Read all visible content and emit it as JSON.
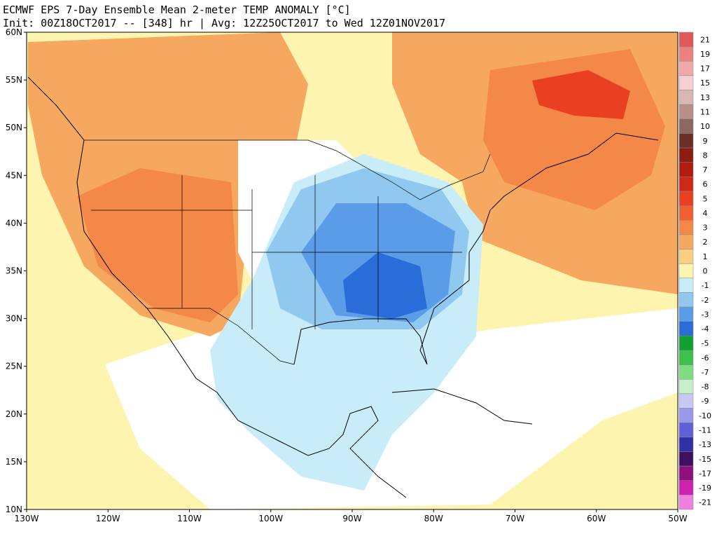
{
  "header": {
    "line1": "ECMWF EPS 7-Day Ensemble Mean 2-meter TEMP ANOMALY [°C]",
    "line2": "Init: 00Z18OCT2017 -- [348] hr | Avg: 12Z25OCT2017 to Wed 12Z01NOV2017"
  },
  "map": {
    "lat_labels": [
      "60N",
      "55N",
      "50N",
      "45N",
      "40N",
      "35N",
      "30N",
      "25N",
      "20N",
      "15N",
      "10N"
    ],
    "lon_labels": [
      "130W",
      "120W",
      "110W",
      "100W",
      "90W",
      "80W",
      "70W",
      "60W",
      "50W"
    ]
  },
  "colorbar": {
    "levels": [
      {
        "label": "21",
        "color": "#e05a5a"
      },
      {
        "label": "19",
        "color": "#ea8080"
      },
      {
        "label": "17",
        "color": "#f2a8a8"
      },
      {
        "label": "15",
        "color": "#f6d0d0"
      },
      {
        "label": "13",
        "color": "#d8b8b0"
      },
      {
        "label": "11",
        "color": "#b89088"
      },
      {
        "label": "10",
        "color": "#8c6860"
      },
      {
        "label": "9",
        "color": "#6a3028"
      },
      {
        "label": "8",
        "color": "#8c1c10"
      },
      {
        "label": "7",
        "color": "#b01c10"
      },
      {
        "label": "6",
        "color": "#d02818"
      },
      {
        "label": "5",
        "color": "#e84020"
      },
      {
        "label": "4",
        "color": "#f06030"
      },
      {
        "label": "3",
        "color": "#f48848"
      },
      {
        "label": "2",
        "color": "#f7a860"
      },
      {
        "label": "1",
        "color": "#fad080"
      },
      {
        "label": "0",
        "color": "#fdf4b0"
      },
      {
        "label": "-1",
        "color": "#c8ecf8"
      },
      {
        "label": "-2",
        "color": "#90c8f0"
      },
      {
        "label": "-3",
        "color": "#5a9ce8"
      },
      {
        "label": "-4",
        "color": "#2a6cd8"
      },
      {
        "label": "-5",
        "color": "#10a030"
      },
      {
        "label": "-6",
        "color": "#40c050"
      },
      {
        "label": "-7",
        "color": "#80dc80"
      },
      {
        "label": "-8",
        "color": "#c8f0c8"
      },
      {
        "label": "-9",
        "color": "#c8c8f4"
      },
      {
        "label": "-10",
        "color": "#9898ec"
      },
      {
        "label": "-11",
        "color": "#6060d8"
      },
      {
        "label": "-13",
        "color": "#3030a8"
      },
      {
        "label": "-15",
        "color": "#401060"
      },
      {
        "label": "-17",
        "color": "#901080"
      },
      {
        "label": "-19",
        "color": "#d020b0"
      },
      {
        "label": "-21",
        "color": "#f080e0"
      }
    ]
  }
}
